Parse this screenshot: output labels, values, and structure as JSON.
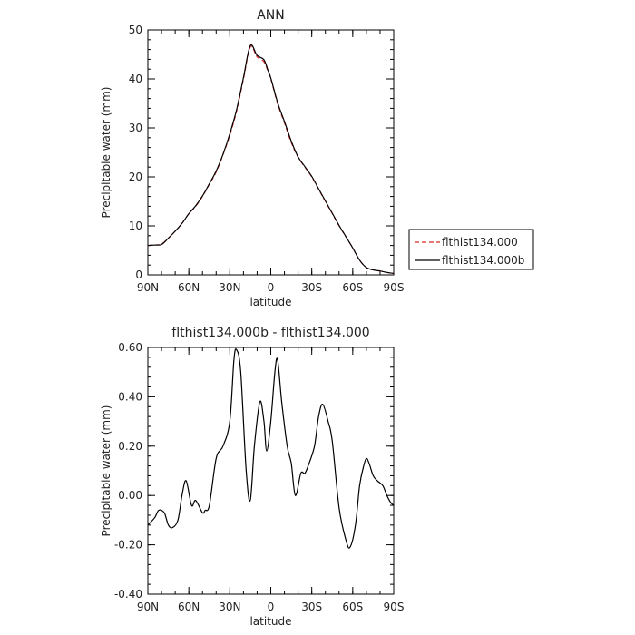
{
  "chart_data": [
    {
      "type": "line",
      "title": "ANN",
      "xlabel": "latitude",
      "ylabel": "Precipitable water (mm)",
      "xlim": [
        90,
        -90
      ],
      "ylim": [
        0,
        50
      ],
      "xticks": [
        90,
        60,
        30,
        0,
        -30,
        -60,
        -90
      ],
      "xtick_labels": [
        "90N",
        "60N",
        "30N",
        "0",
        "30S",
        "60S",
        "90S"
      ],
      "yticks": [
        0,
        10,
        20,
        30,
        40,
        50
      ],
      "ytick_labels": [
        "0",
        "10",
        "20",
        "30",
        "40",
        "50"
      ],
      "grid": false,
      "legend_position": "outside-right",
      "x": [
        90,
        85,
        80,
        75,
        70,
        65,
        60,
        55,
        50,
        45,
        40,
        35,
        30,
        25,
        20,
        15,
        10,
        5,
        2,
        0,
        -5,
        -10,
        -15,
        -20,
        -25,
        -30,
        -35,
        -40,
        -45,
        -50,
        -55,
        -60,
        -65,
        -70,
        -75,
        -80,
        -85,
        -90
      ],
      "series": [
        {
          "name": "flthist134.000",
          "color": "#d62728",
          "dash": "dashed",
          "values": [
            6.0,
            6.1,
            6.3,
            7.5,
            8.9,
            10.5,
            12.5,
            14.0,
            16.0,
            18.5,
            21.0,
            24.5,
            28.5,
            33.5,
            40.0,
            46.5,
            44.5,
            43.5,
            41.5,
            40.0,
            35.0,
            31.0,
            27.0,
            24.0,
            22.0,
            20.0,
            17.5,
            15.0,
            12.5,
            10.0,
            7.8,
            5.5,
            3.0,
            1.5,
            1.0,
            0.8,
            0.5,
            0.3
          ]
        },
        {
          "name": "flthist134.000b",
          "color": "#000000",
          "dash": "solid",
          "values": [
            6.0,
            6.1,
            6.2,
            7.5,
            8.9,
            10.5,
            12.5,
            14.1,
            16.1,
            18.6,
            21.2,
            24.6,
            28.8,
            33.8,
            40.3,
            46.8,
            44.8,
            43.9,
            41.7,
            40.2,
            35.2,
            31.3,
            27.3,
            24.1,
            22.1,
            20.1,
            17.6,
            15.1,
            12.6,
            10.1,
            7.8,
            5.5,
            3.0,
            1.5,
            1.0,
            0.8,
            0.5,
            0.3
          ]
        }
      ]
    },
    {
      "type": "line",
      "title": "flthist134.000b - flthist134.000",
      "xlabel": "latitude",
      "ylabel": "Precipitable water (mm)",
      "xlim": [
        90,
        -90
      ],
      "ylim": [
        -0.4,
        0.6
      ],
      "xticks": [
        90,
        60,
        30,
        0,
        -30,
        -60,
        -90
      ],
      "xtick_labels": [
        "90N",
        "60N",
        "30N",
        "0",
        "30S",
        "60S",
        "90S"
      ],
      "yticks": [
        -0.4,
        -0.2,
        0.0,
        0.2,
        0.4,
        0.6
      ],
      "ytick_labels": [
        "-0.40",
        "-0.20",
        "0.00",
        "0.20",
        "0.40",
        "0.60"
      ],
      "grid": false,
      "x": [
        90,
        85,
        82,
        78,
        75,
        72,
        68,
        65,
        62,
        58,
        55,
        50,
        48,
        45,
        40,
        35,
        30,
        27,
        25,
        22,
        18,
        15,
        12,
        8,
        5,
        3,
        0,
        -3,
        -5,
        -8,
        -12,
        -15,
        -18,
        -22,
        -25,
        -28,
        -32,
        -35,
        -38,
        -42,
        -45,
        -50,
        -55,
        -58,
        -62,
        -65,
        -68,
        -70,
        -72,
        -75,
        -78,
        -82,
        -85,
        -88,
        -90
      ],
      "series": [
        {
          "name": "",
          "color": "#000000",
          "dash": "solid",
          "values": [
            -0.12,
            -0.09,
            -0.06,
            -0.07,
            -0.12,
            -0.13,
            -0.1,
            0.0,
            0.06,
            -0.04,
            -0.02,
            -0.07,
            -0.06,
            -0.04,
            0.15,
            0.2,
            0.3,
            0.55,
            0.59,
            0.5,
            0.1,
            -0.02,
            0.2,
            0.38,
            0.3,
            0.18,
            0.3,
            0.5,
            0.55,
            0.38,
            0.2,
            0.13,
            0.0,
            0.09,
            0.09,
            0.13,
            0.2,
            0.32,
            0.37,
            0.3,
            0.22,
            -0.05,
            -0.18,
            -0.21,
            -0.12,
            0.04,
            0.12,
            0.15,
            0.13,
            0.08,
            0.06,
            0.04,
            0.0,
            -0.03,
            -0.04
          ]
        }
      ]
    }
  ]
}
